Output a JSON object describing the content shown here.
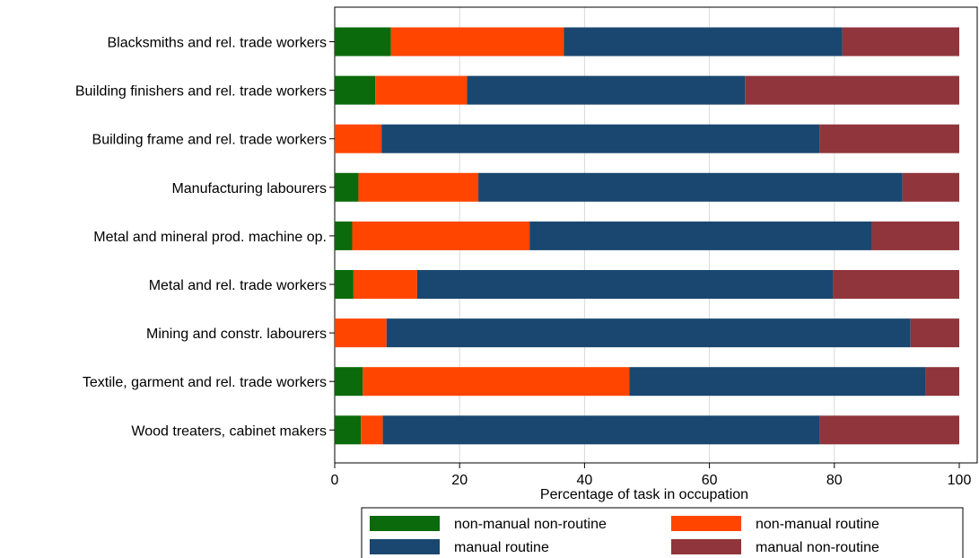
{
  "chart_data": {
    "type": "bar",
    "orientation": "horizontal",
    "stacked": true,
    "title": "",
    "xlabel": "Percentage of task in occupation",
    "ylabel": "",
    "xlim": [
      0,
      100
    ],
    "xticks": [
      0,
      20,
      40,
      60,
      80,
      100
    ],
    "grid": "vertical",
    "legend_position": "bottom",
    "categories": [
      "Blacksmiths and rel. trade workers",
      "Building finishers and rel. trade workers",
      "Building frame and rel. trade workers",
      "Manufacturing labourers",
      "Metal and mineral prod. machine op.",
      "Metal and rel. trade workers",
      "Mining and constr. labourers",
      "Textile, garment and rel. trade workers",
      "Wood treaters, cabinet makers"
    ],
    "series": [
      {
        "name": "non-manual non-routine",
        "color": "#0b6a0b",
        "values": [
          9.0,
          6.5,
          0.0,
          3.8,
          2.8,
          3.0,
          0.0,
          4.5,
          4.2
        ]
      },
      {
        "name": "non-manual routine",
        "color": "#ff4500",
        "values": [
          27.7,
          14.7,
          7.5,
          19.2,
          28.4,
          10.2,
          8.3,
          42.7,
          3.5
        ]
      },
      {
        "name": "manual routine",
        "color": "#1a476f",
        "values": [
          44.6,
          44.5,
          70.1,
          67.9,
          54.8,
          66.6,
          83.9,
          47.4,
          70.0
        ]
      },
      {
        "name": "manual non-routine",
        "color": "#90353b",
        "values": [
          18.7,
          34.3,
          22.4,
          9.1,
          14.0,
          20.2,
          7.8,
          5.4,
          22.3
        ]
      }
    ]
  }
}
